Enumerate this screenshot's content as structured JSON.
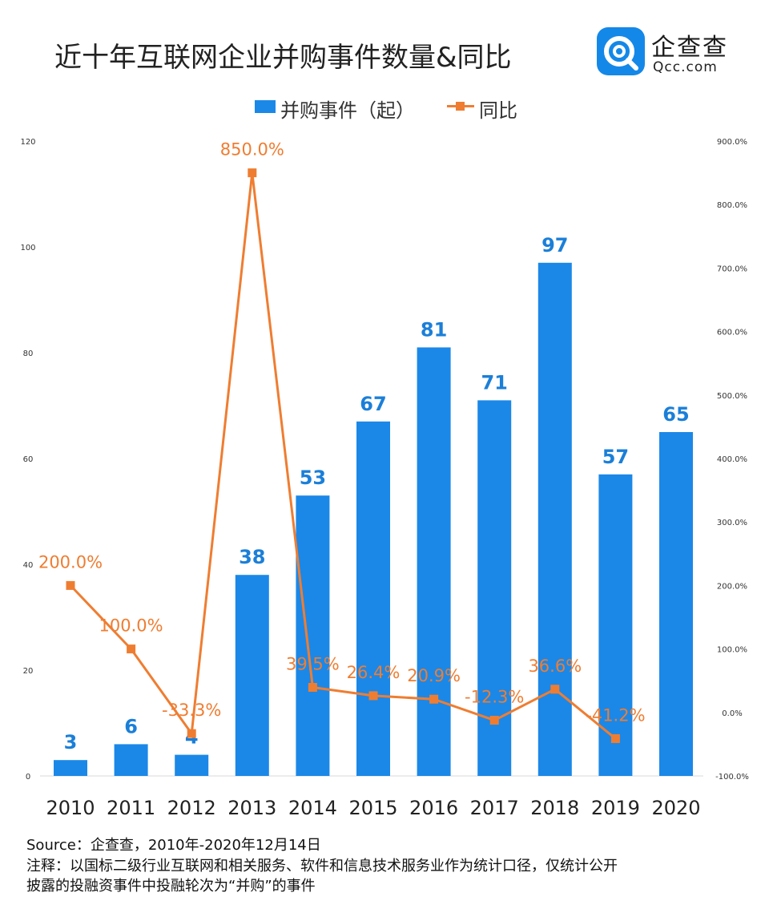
{
  "header": {
    "title": "近十年互联网企业并购事件数量&同比",
    "logo_cn": "企查查",
    "logo_en": "Qcc.com"
  },
  "legend": {
    "bar_label": "并购事件（起）",
    "line_label": "同比"
  },
  "footer": {
    "source": "Source：企查查，2010年-2020年12月14日",
    "note_line1": "注释：以国标二级行业互联网和相关服务、软件和信息技术服务业作为统计口径，仅统计公开",
    "note_line2": "披露的投融资事件中投融轮次为“并购”的事件"
  },
  "colors": {
    "bar": "#1b88e8",
    "bar_label": "#1b7fd8",
    "line": "#ef7d31",
    "axis": "#333333"
  },
  "chart_data": {
    "type": "bar+line",
    "title": "近十年互联网企业并购事件数量&同比",
    "categories": [
      "2010",
      "2011",
      "2012",
      "2013",
      "2014",
      "2015",
      "2016",
      "2017",
      "2018",
      "2019",
      "2020"
    ],
    "series": [
      {
        "name": "并购事件（起）",
        "type": "bar",
        "axis": "left",
        "values": [
          3,
          6,
          4,
          38,
          53,
          67,
          81,
          71,
          97,
          57,
          65
        ],
        "labels": [
          "3",
          "6",
          "4",
          "38",
          "53",
          "67",
          "81",
          "71",
          "97",
          "57",
          "65"
        ]
      },
      {
        "name": "同比",
        "type": "line",
        "axis": "right",
        "values": [
          200.0,
          100.0,
          -33.3,
          850.0,
          39.5,
          26.4,
          20.9,
          -12.3,
          36.6,
          -41.2,
          null
        ],
        "labels": [
          "200.0%",
          "100.0%",
          "-33.3%",
          "850.0%",
          "39.5%",
          "26.4%",
          "20.9%",
          "-12.3%",
          "36.6%",
          "-41.2%",
          ""
        ]
      }
    ],
    "left_axis": {
      "range": [
        0,
        120
      ],
      "ticks": [
        "0",
        "20",
        "40",
        "60",
        "80",
        "100",
        "120"
      ]
    },
    "right_axis": {
      "range": [
        -100,
        900
      ],
      "ticks": [
        "-100.0%",
        "0.0%",
        "100.0%",
        "200.0%",
        "300.0%",
        "400.0%",
        "500.0%",
        "600.0%",
        "700.0%",
        "800.0%",
        "900.0%"
      ]
    },
    "grid": false,
    "legend_position": "top-center"
  }
}
